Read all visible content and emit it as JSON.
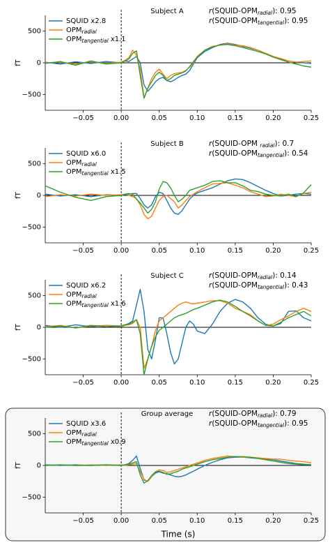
{
  "chart_data": [
    {
      "type": "line",
      "title": "Subject A",
      "ylabel": "fT",
      "xlim": [
        -0.1,
        0.25
      ],
      "ylim": [
        -750,
        750
      ],
      "xticks": [
        {
          "value": -0.05,
          "label": "−0.05"
        },
        {
          "value": 0,
          "label": "0.00"
        },
        0.05,
        {
          "value": 0.1,
          "label": "0.10"
        },
        0.15,
        {
          "value": 0.2,
          "label": "0.20"
        },
        0.25
      ],
      "yticks": [
        {
          "value": -500,
          "label": "−500"
        },
        0,
        500
      ],
      "hline": 0,
      "vline": 0,
      "annotations": [
        {
          "prefix": "r",
          "text": "(SQUID-OPM",
          "sub": "radial",
          "suffix": "): ",
          "value": 0.95
        },
        {
          "prefix": "r",
          "text": "(SQUID-OPM",
          "sub": "tangential",
          "suffix": "): ",
          "value": 0.95
        }
      ],
      "x": [
        -0.1,
        -0.08,
        -0.06,
        -0.04,
        -0.02,
        0,
        0.005,
        0.01,
        0.015,
        0.02,
        0.025,
        0.03,
        0.035,
        0.04,
        0.045,
        0.05,
        0.055,
        0.06,
        0.065,
        0.07,
        0.075,
        0.08,
        0.085,
        0.09,
        0.095,
        0.1,
        0.11,
        0.12,
        0.13,
        0.14,
        0.15,
        0.16,
        0.17,
        0.18,
        0.19,
        0.2,
        0.21,
        0.22,
        0.23,
        0.24,
        0.25
      ],
      "series": [
        {
          "name": "SQUID x2.8",
          "color": "#1f77b4",
          "values": [
            10,
            -20,
            15,
            -10,
            20,
            0,
            30,
            20,
            60,
            100,
            0,
            -350,
            -450,
            -380,
            -300,
            -250,
            -230,
            -280,
            -300,
            -270,
            -230,
            -200,
            -180,
            -120,
            -20,
            80,
            180,
            240,
            290,
            310,
            290,
            260,
            230,
            200,
            150,
            100,
            60,
            30,
            10,
            0,
            -10
          ]
        },
        {
          "name": "OPM",
          "sub": "radial",
          "color": "#ff7f0e",
          "values": [
            0,
            10,
            -20,
            20,
            -10,
            10,
            40,
            80,
            200,
            120,
            -100,
            -550,
            -400,
            -250,
            -150,
            -100,
            -180,
            -250,
            -200,
            -170,
            -160,
            -150,
            -120,
            -70,
            0,
            100,
            200,
            260,
            280,
            300,
            280,
            270,
            240,
            200,
            150,
            100,
            70,
            30,
            10,
            20,
            30
          ]
        },
        {
          "name": "OPM",
          "sub": "tangential",
          "suffix": " x1.1",
          "color": "#2ca02c",
          "values": [
            -10,
            20,
            -40,
            30,
            -20,
            0,
            30,
            60,
            150,
            190,
            -200,
            -560,
            -400,
            -300,
            -200,
            -150,
            -200,
            -280,
            -250,
            -200,
            -180,
            -160,
            -130,
            -60,
            20,
            90,
            200,
            250,
            280,
            290,
            270,
            240,
            210,
            180,
            140,
            90,
            50,
            10,
            -20,
            -50,
            -70
          ]
        }
      ]
    },
    {
      "type": "line",
      "title": "Subject B",
      "ylabel": "fT",
      "xlim": [
        -0.1,
        0.25
      ],
      "ylim": [
        -750,
        750
      ],
      "xticks": [
        {
          "value": -0.05,
          "label": "−0.05"
        },
        {
          "value": 0,
          "label": "0.00"
        },
        0.05,
        {
          "value": 0.1,
          "label": "0.10"
        },
        0.15,
        {
          "value": 0.2,
          "label": "0.20"
        },
        0.25
      ],
      "yticks": [
        {
          "value": -500,
          "label": "−500"
        },
        0,
        500
      ],
      "hline": 0,
      "vline": 0,
      "annotations": [
        {
          "prefix": "r",
          "text": "(SQUID-OPM ",
          "sub": "radial",
          "suffix": "): ",
          "value": 0.7
        },
        {
          "prefix": "r",
          "text": "(SQUID-OPM",
          "sub": "tangential",
          "suffix": "): ",
          "value": 0.54
        }
      ],
      "x": [
        -0.1,
        -0.08,
        -0.06,
        -0.04,
        -0.02,
        0,
        0.005,
        0.01,
        0.015,
        0.02,
        0.025,
        0.03,
        0.035,
        0.04,
        0.045,
        0.05,
        0.055,
        0.06,
        0.065,
        0.07,
        0.075,
        0.08,
        0.085,
        0.09,
        0.095,
        0.1,
        0.11,
        0.12,
        0.13,
        0.14,
        0.15,
        0.16,
        0.17,
        0.18,
        0.19,
        0.2,
        0.21,
        0.22,
        0.23,
        0.24,
        0.25
      ],
      "series": [
        {
          "name": "SQUID x6.0",
          "color": "#1f77b4",
          "values": [
            20,
            -10,
            10,
            -20,
            10,
            0,
            10,
            20,
            30,
            30,
            -50,
            -150,
            -200,
            -150,
            -20,
            50,
            30,
            -80,
            -200,
            -280,
            -300,
            -240,
            -150,
            -60,
            0,
            40,
            80,
            120,
            180,
            230,
            260,
            250,
            200,
            140,
            80,
            30,
            -10,
            0,
            20,
            30,
            20
          ]
        },
        {
          "name": "OPM",
          "sub": "radial",
          "color": "#ff7f0e",
          "values": [
            -20,
            10,
            -10,
            20,
            0,
            10,
            20,
            0,
            -20,
            -50,
            -150,
            -300,
            -370,
            -330,
            -200,
            -80,
            -20,
            0,
            -50,
            -100,
            -200,
            -150,
            -80,
            -20,
            20,
            60,
            120,
            180,
            190,
            200,
            160,
            120,
            60,
            20,
            -20,
            -10,
            20,
            0,
            -20,
            30,
            50
          ]
        },
        {
          "name": "OPM",
          "sub": "tangential",
          "suffix": " x1.5",
          "color": "#2ca02c",
          "values": [
            150,
            50,
            -30,
            -80,
            -20,
            0,
            20,
            30,
            20,
            -60,
            -120,
            -200,
            -280,
            -220,
            -100,
            100,
            220,
            200,
            120,
            0,
            -100,
            -60,
            0,
            80,
            100,
            120,
            160,
            220,
            230,
            200,
            200,
            150,
            80,
            60,
            20,
            0,
            -10,
            20,
            -20,
            40,
            170
          ]
        }
      ]
    },
    {
      "type": "line",
      "title": "Subject C",
      "ylabel": "fT",
      "xlim": [
        -0.1,
        0.25
      ],
      "ylim": [
        -750,
        750
      ],
      "xticks": [
        {
          "value": -0.05,
          "label": "−0.05"
        },
        {
          "value": 0,
          "label": "0.00"
        },
        0.05,
        {
          "value": 0.1,
          "label": "0.10"
        },
        0.15,
        {
          "value": 0.2,
          "label": "0.20"
        },
        0.25
      ],
      "yticks": [
        {
          "value": -500,
          "label": "−500"
        },
        0,
        500
      ],
      "hline": 0,
      "vline": 0,
      "annotations": [
        {
          "prefix": "r",
          "text": "(SQUID-OPM",
          "sub": "radial",
          "suffix": "): ",
          "value": 0.14
        },
        {
          "prefix": "r",
          "text": "(SQUID-OPM",
          "sub": "tangential",
          "suffix": "): ",
          "value": 0.43
        }
      ],
      "x": [
        -0.1,
        -0.08,
        -0.06,
        -0.04,
        -0.02,
        0,
        0.005,
        0.01,
        0.015,
        0.02,
        0.025,
        0.03,
        0.035,
        0.04,
        0.045,
        0.05,
        0.055,
        0.06,
        0.065,
        0.07,
        0.075,
        0.08,
        0.085,
        0.09,
        0.095,
        0.1,
        0.11,
        0.12,
        0.13,
        0.14,
        0.15,
        0.16,
        0.17,
        0.18,
        0.19,
        0.2,
        0.21,
        0.22,
        0.23,
        0.24,
        0.25
      ],
      "series": [
        {
          "name": "SQUID x6.2",
          "color": "#1f77b4",
          "values": [
            30,
            0,
            40,
            10,
            30,
            20,
            40,
            60,
            100,
            350,
            600,
            250,
            -350,
            -500,
            -200,
            150,
            150,
            -100,
            -400,
            -580,
            -500,
            -250,
            0,
            100,
            50,
            -60,
            -100,
            50,
            250,
            380,
            440,
            400,
            300,
            150,
            50,
            20,
            60,
            250,
            260,
            150,
            100
          ]
        },
        {
          "name": "OPM",
          "sub": "radial",
          "color": "#ff7f0e",
          "values": [
            10,
            30,
            -10,
            20,
            30,
            10,
            30,
            40,
            60,
            120,
            0,
            -650,
            -500,
            -300,
            -50,
            100,
            150,
            200,
            250,
            300,
            350,
            380,
            400,
            380,
            370,
            380,
            400,
            420,
            420,
            380,
            300,
            250,
            200,
            100,
            30,
            50,
            120,
            180,
            250,
            300,
            250
          ]
        },
        {
          "name": "OPM",
          "sub": "tangential",
          "suffix": " x1.6",
          "color": "#2ca02c",
          "values": [
            0,
            20,
            -10,
            30,
            10,
            20,
            40,
            50,
            80,
            120,
            -100,
            -750,
            -500,
            -300,
            -150,
            -50,
            0,
            50,
            100,
            150,
            180,
            200,
            220,
            250,
            280,
            300,
            350,
            400,
            430,
            400,
            330,
            250,
            180,
            100,
            30,
            20,
            80,
            150,
            200,
            250,
            180
          ]
        }
      ]
    },
    {
      "type": "line",
      "title": "Group average",
      "ylabel": "fT",
      "xlabel": "Time (s)",
      "frame": true,
      "xlim": [
        -0.1,
        0.25
      ],
      "ylim": [
        -750,
        750
      ],
      "xticks": [
        {
          "value": -0.05,
          "label": "−0.05"
        },
        {
          "value": 0,
          "label": "0.00"
        },
        0.05,
        {
          "value": 0.1,
          "label": "0.10"
        },
        0.15,
        {
          "value": 0.2,
          "label": "0.20"
        },
        0.25
      ],
      "yticks": [
        {
          "value": -500,
          "label": "−500"
        },
        0,
        500
      ],
      "hline": 0,
      "vline": 0,
      "annotations": [
        {
          "prefix": "r",
          "text": "(SQUID-OPM",
          "sub": "radial",
          "suffix": "): ",
          "value": 0.79
        },
        {
          "prefix": "r",
          "text": "(SQUID-OPM",
          "sub": "tangential",
          "suffix": "): ",
          "value": 0.95
        }
      ],
      "x": [
        -0.1,
        -0.08,
        -0.06,
        -0.04,
        -0.02,
        0,
        0.005,
        0.01,
        0.015,
        0.02,
        0.025,
        0.03,
        0.035,
        0.04,
        0.045,
        0.05,
        0.055,
        0.06,
        0.065,
        0.07,
        0.075,
        0.08,
        0.085,
        0.09,
        0.095,
        0.1,
        0.11,
        0.12,
        0.13,
        0.14,
        0.15,
        0.16,
        0.17,
        0.18,
        0.19,
        0.2,
        0.21,
        0.22,
        0.23,
        0.24,
        0.25
      ],
      "series": [
        {
          "name": "SQUID x3.6",
          "color": "#1f77b4",
          "values": [
            10,
            0,
            10,
            0,
            10,
            0,
            10,
            30,
            80,
            150,
            -50,
            -230,
            -250,
            -180,
            -120,
            -100,
            -120,
            -130,
            -150,
            -170,
            -180,
            -170,
            -150,
            -120,
            -90,
            -60,
            0,
            50,
            90,
            120,
            130,
            130,
            120,
            110,
            100,
            90,
            70,
            50,
            30,
            20,
            10
          ]
        },
        {
          "name": "OPM",
          "sub": "radial",
          "color": "#ff7f0e",
          "values": [
            0,
            10,
            0,
            10,
            0,
            10,
            0,
            10,
            20,
            30,
            -100,
            -220,
            -250,
            -180,
            -100,
            -70,
            -80,
            -110,
            -100,
            -80,
            -60,
            -40,
            -20,
            0,
            20,
            40,
            80,
            110,
            130,
            150,
            140,
            130,
            130,
            120,
            110,
            100,
            100,
            80,
            70,
            60,
            40
          ]
        },
        {
          "name": "OPM",
          "sub": "tangential",
          "suffix": " x0.9",
          "color": "#2ca02c",
          "values": [
            0,
            10,
            0,
            0,
            10,
            0,
            10,
            20,
            40,
            60,
            -150,
            -280,
            -240,
            -160,
            -100,
            -90,
            -110,
            -140,
            -130,
            -110,
            -90,
            -60,
            -40,
            -20,
            0,
            20,
            60,
            90,
            110,
            130,
            140,
            140,
            130,
            110,
            90,
            70,
            50,
            30,
            20,
            10,
            10
          ]
        }
      ]
    }
  ]
}
